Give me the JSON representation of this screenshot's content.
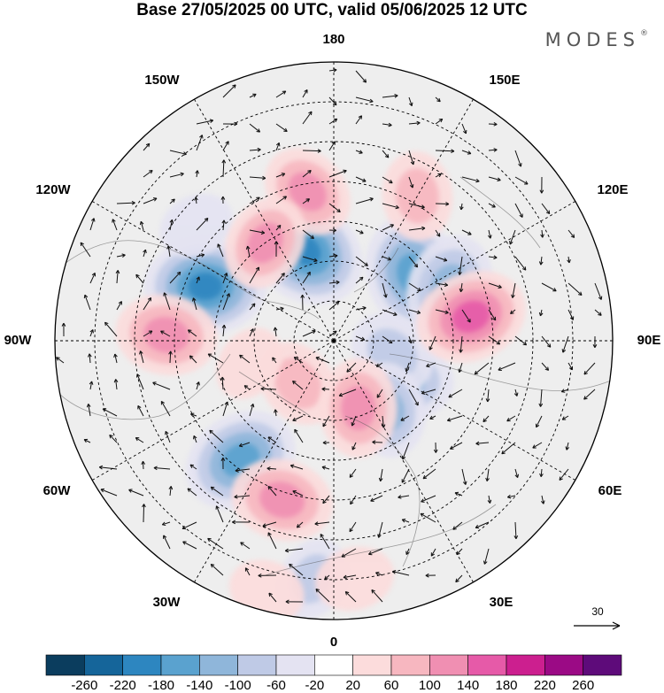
{
  "title": "Base 27/05/2025 00 UTC, valid 05/06/2025 12 UTC",
  "brand": "MODES",
  "brand_mark": "®",
  "longitude_labels": [
    {
      "id": "lon-180",
      "text": "180"
    },
    {
      "id": "lon-150e",
      "text": "150E"
    },
    {
      "id": "lon-120e",
      "text": "120E"
    },
    {
      "id": "lon-90e",
      "text": "90E"
    },
    {
      "id": "lon-60e",
      "text": "60E"
    },
    {
      "id": "lon-30e",
      "text": "30E"
    },
    {
      "id": "lon-0",
      "text": "0"
    },
    {
      "id": "lon-30w",
      "text": "30W"
    },
    {
      "id": "lon-60w",
      "text": "60W"
    },
    {
      "id": "lon-90w",
      "text": "90W"
    },
    {
      "id": "lon-120w",
      "text": "120W"
    },
    {
      "id": "lon-150w",
      "text": "150W"
    }
  ],
  "reference_vector": {
    "label": "30"
  },
  "colorbar": {
    "ticks": [
      "-260",
      "-220",
      "-180",
      "-140",
      "-100",
      "-60",
      "-20",
      "20",
      "60",
      "100",
      "140",
      "180",
      "220",
      "260"
    ],
    "colors": [
      "#0b3d5e",
      "#15659a",
      "#2d86c0",
      "#5aa2cf",
      "#8fb6da",
      "#bfcae6",
      "#e4e3f2",
      "#ffffff",
      "#fcdcdc",
      "#f7b7c0",
      "#f08fb2",
      "#e65aa8",
      "#cc1f8f",
      "#9b0a85",
      "#5e0b7a"
    ]
  },
  "anomalies": [
    {
      "lon": -113,
      "lat": 55,
      "value": -200
    },
    {
      "lon": -162,
      "lat": 66,
      "value": -210
    },
    {
      "lon": 130,
      "lat": 64,
      "value": -190
    },
    {
      "lon": 115,
      "lat": 58,
      "value": -150
    },
    {
      "lon": -38,
      "lat": 52,
      "value": -180
    },
    {
      "lon": 60,
      "lat": 70,
      "value": -140
    },
    {
      "lon": 78,
      "lat": 75,
      "value": -100
    },
    {
      "lon": 38,
      "lat": 68,
      "value": -120
    },
    {
      "lon": -5,
      "lat": 30,
      "value": -80
    },
    {
      "lon": -130,
      "lat": 45,
      "value": -60
    },
    {
      "lon": -92,
      "lat": 48,
      "value": 140
    },
    {
      "lon": -170,
      "lat": 52,
      "value": 120
    },
    {
      "lon": 150,
      "lat": 48,
      "value": 100
    },
    {
      "lon": -145,
      "lat": 60,
      "value": 120
    },
    {
      "lon": 100,
      "lat": 55,
      "value": 170
    },
    {
      "lon": -18,
      "lat": 48,
      "value": 140
    },
    {
      "lon": -40,
      "lat": 76,
      "value": 100
    },
    {
      "lon": 20,
      "lat": 72,
      "value": 130
    },
    {
      "lon": -75,
      "lat": 68,
      "value": 60
    },
    {
      "lon": 5,
      "lat": 30,
      "value": 70
    },
    {
      "lon": -15,
      "lat": 25,
      "value": 60
    }
  ]
}
